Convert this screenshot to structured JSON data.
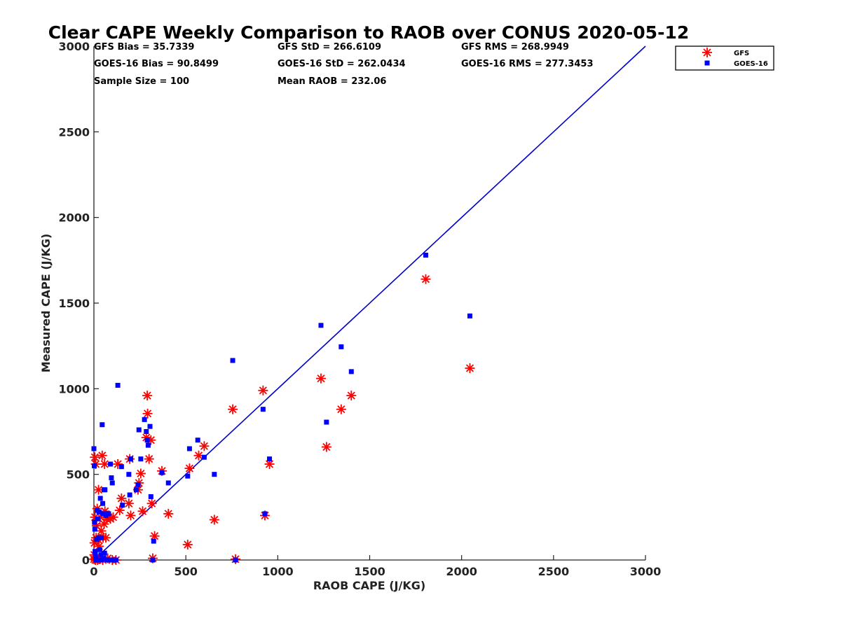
{
  "chart_data": {
    "type": "scatter",
    "title": "Clear CAPE Weekly Comparison to RAOB over CONUS 2020-05-12",
    "xlabel": "RAOB CAPE (J/KG)",
    "ylabel": "Measured CAPE (J/KG)",
    "xlim": [
      0,
      3000
    ],
    "ylim": [
      0,
      3000
    ],
    "xticks": [
      0,
      500,
      1000,
      1500,
      2000,
      2500,
      3000
    ],
    "yticks": [
      0,
      500,
      1000,
      1500,
      2000,
      2500,
      3000
    ],
    "xtick_labels": [
      "0",
      "500",
      "1000",
      "1500",
      "2000",
      "2500",
      "3000"
    ],
    "ytick_labels": [
      "0",
      "500",
      "1000",
      "1500",
      "2000",
      "2500",
      "3000"
    ],
    "grid": false,
    "legend_position": "top-right",
    "stats": [
      "GFS Bias = 35.7339",
      "GFS StD = 266.6109",
      "GFS RMS = 268.9949",
      "GOES-16 Bias = 90.8499",
      "GOES-16 StD = 262.0434",
      "GOES-16 RMS = 277.3453",
      "Sample Size = 100",
      "Mean RAOB = 232.06"
    ],
    "reference_line": {
      "x": [
        0,
        3000
      ],
      "y": [
        0,
        3000
      ],
      "color": "#0000cc"
    },
    "series": [
      {
        "name": "GFS",
        "marker": "asterisk",
        "color": "#ff0000",
        "points": [
          [
            0,
            5
          ],
          [
            2,
            30
          ],
          [
            3,
            100
          ],
          [
            5,
            600
          ],
          [
            6,
            250
          ],
          [
            8,
            0
          ],
          [
            10,
            560
          ],
          [
            12,
            130
          ],
          [
            14,
            10
          ],
          [
            15,
            200
          ],
          [
            18,
            300
          ],
          [
            20,
            0
          ],
          [
            22,
            120
          ],
          [
            25,
            410
          ],
          [
            28,
            80
          ],
          [
            30,
            5
          ],
          [
            35,
            250
          ],
          [
            40,
            170
          ],
          [
            45,
            610
          ],
          [
            48,
            0
          ],
          [
            50,
            130
          ],
          [
            55,
            210
          ],
          [
            58,
            560
          ],
          [
            60,
            285
          ],
          [
            65,
            130
          ],
          [
            70,
            240
          ],
          [
            75,
            10
          ],
          [
            80,
            250
          ],
          [
            90,
            240
          ],
          [
            100,
            0
          ],
          [
            105,
            250
          ],
          [
            120,
            0
          ],
          [
            130,
            560
          ],
          [
            140,
            290
          ],
          [
            150,
            360
          ],
          [
            190,
            330
          ],
          [
            195,
            590
          ],
          [
            200,
            260
          ],
          [
            240,
            410
          ],
          [
            245,
            450
          ],
          [
            255,
            505
          ],
          [
            265,
            285
          ],
          [
            285,
            715
          ],
          [
            290,
            960
          ],
          [
            292,
            855
          ],
          [
            300,
            590
          ],
          [
            310,
            700
          ],
          [
            315,
            330
          ],
          [
            320,
            10
          ],
          [
            330,
            140
          ],
          [
            370,
            520
          ],
          [
            405,
            270
          ],
          [
            510,
            90
          ],
          [
            520,
            535
          ],
          [
            570,
            610
          ],
          [
            600,
            665
          ],
          [
            655,
            235
          ],
          [
            755,
            880
          ],
          [
            770,
            5
          ],
          [
            920,
            990
          ],
          [
            930,
            260
          ],
          [
            955,
            560
          ],
          [
            1235,
            1060
          ],
          [
            1265,
            660
          ],
          [
            1345,
            880
          ],
          [
            1400,
            960
          ],
          [
            1805,
            1640
          ],
          [
            2045,
            1120
          ]
        ]
      },
      {
        "name": "GOES-16",
        "marker": "square",
        "color": "#0000ff",
        "points": [
          [
            0,
            650
          ],
          [
            2,
            550
          ],
          [
            3,
            220
          ],
          [
            5,
            180
          ],
          [
            6,
            50
          ],
          [
            8,
            30
          ],
          [
            10,
            10
          ],
          [
            12,
            0
          ],
          [
            15,
            120
          ],
          [
            18,
            290
          ],
          [
            20,
            240
          ],
          [
            22,
            0
          ],
          [
            25,
            130
          ],
          [
            28,
            280
          ],
          [
            30,
            0
          ],
          [
            32,
            60
          ],
          [
            35,
            360
          ],
          [
            38,
            30
          ],
          [
            40,
            130
          ],
          [
            42,
            0
          ],
          [
            45,
            790
          ],
          [
            48,
            330
          ],
          [
            50,
            270
          ],
          [
            52,
            10
          ],
          [
            55,
            410
          ],
          [
            58,
            40
          ],
          [
            60,
            410
          ],
          [
            65,
            260
          ],
          [
            70,
            270
          ],
          [
            72,
            0
          ],
          [
            80,
            270
          ],
          [
            85,
            0
          ],
          [
            90,
            560
          ],
          [
            95,
            480
          ],
          [
            100,
            450
          ],
          [
            105,
            0
          ],
          [
            120,
            0
          ],
          [
            130,
            1020
          ],
          [
            150,
            545
          ],
          [
            155,
            320
          ],
          [
            190,
            500
          ],
          [
            195,
            380
          ],
          [
            200,
            590
          ],
          [
            230,
            410
          ],
          [
            240,
            440
          ],
          [
            245,
            760
          ],
          [
            255,
            590
          ],
          [
            275,
            820
          ],
          [
            285,
            750
          ],
          [
            290,
            700
          ],
          [
            295,
            670
          ],
          [
            305,
            780
          ],
          [
            310,
            370
          ],
          [
            320,
            0
          ],
          [
            325,
            110
          ],
          [
            370,
            510
          ],
          [
            405,
            450
          ],
          [
            510,
            490
          ],
          [
            520,
            650
          ],
          [
            565,
            700
          ],
          [
            600,
            600
          ],
          [
            655,
            500
          ],
          [
            755,
            1165
          ],
          [
            770,
            0
          ],
          [
            920,
            880
          ],
          [
            930,
            270
          ],
          [
            955,
            590
          ],
          [
            1235,
            1370
          ],
          [
            1265,
            805
          ],
          [
            1345,
            1245
          ],
          [
            1400,
            1100
          ],
          [
            1805,
            1780
          ],
          [
            2045,
            1425
          ]
        ]
      }
    ]
  }
}
